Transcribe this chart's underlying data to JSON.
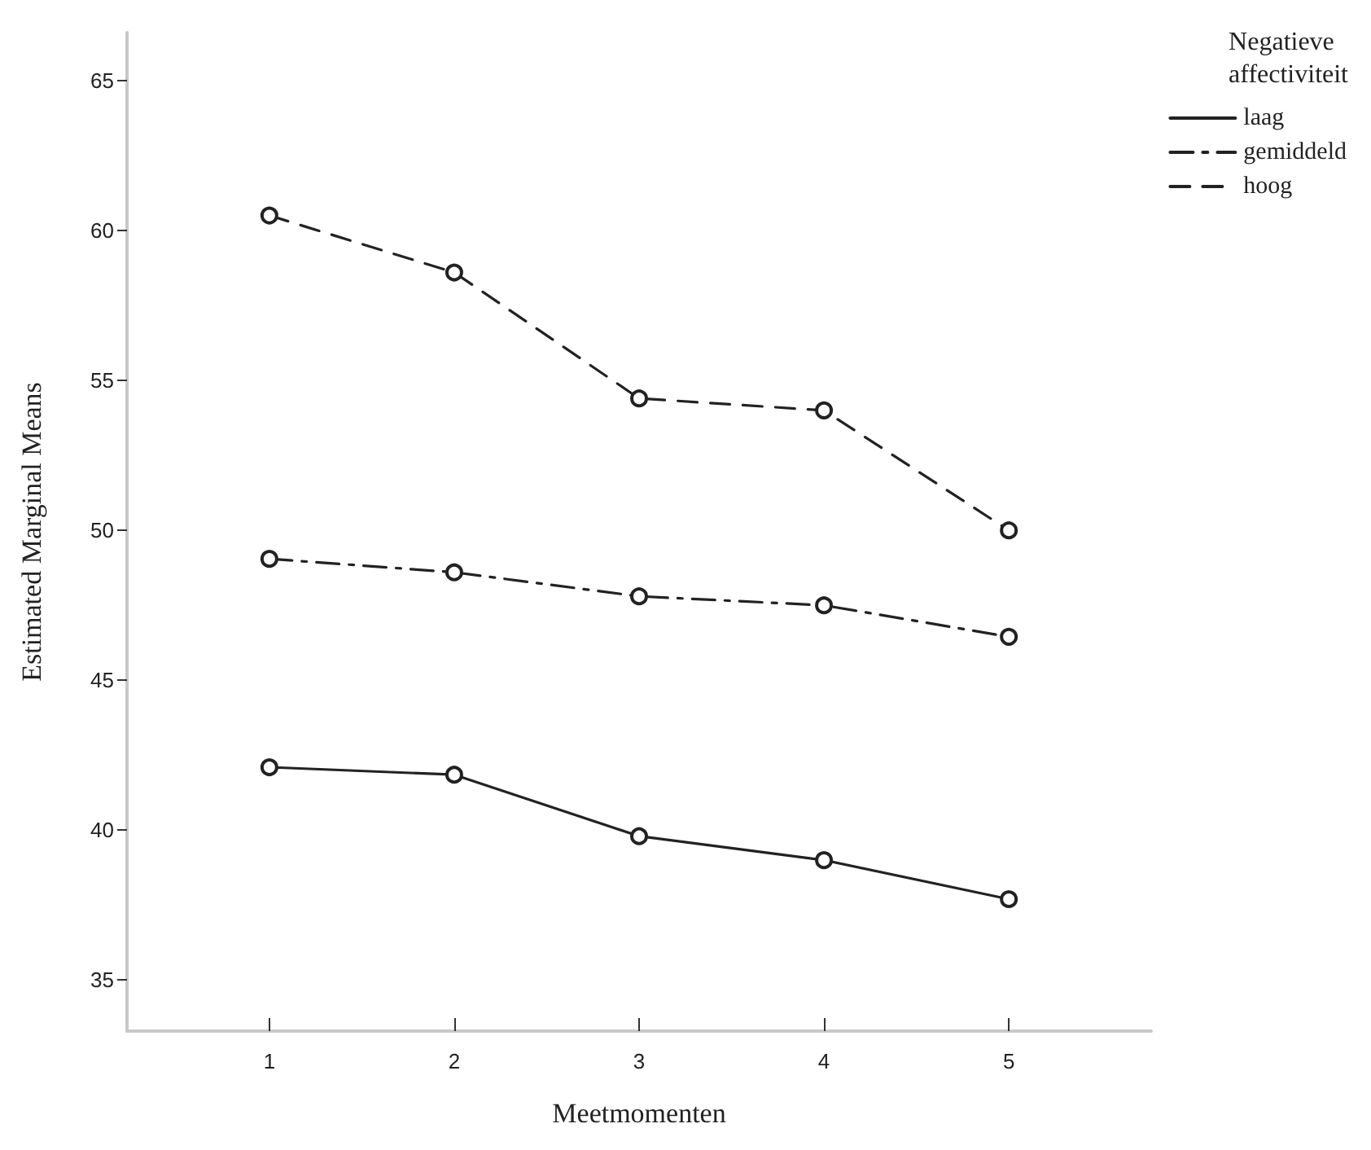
{
  "chart_data": {
    "type": "line",
    "xlabel": "Meetmomenten",
    "ylabel": "Estimated Marginal Means",
    "legend_title": "Negatieve affectiviteit",
    "x": [
      1,
      2,
      3,
      4,
      5
    ],
    "xlim": [
      0.23,
      5.77
    ],
    "xticks": [
      1,
      2,
      3,
      4,
      5
    ],
    "ylim": [
      33.3,
      66.6
    ],
    "yticks": [
      35,
      40,
      45,
      50,
      55,
      60,
      65
    ],
    "series": [
      {
        "name": "laag",
        "color": "#222222",
        "line_style": "solid",
        "values": [
          42.1,
          41.85,
          39.8,
          39.0,
          37.7
        ]
      },
      {
        "name": "gemiddeld",
        "color": "#222222",
        "line_style": "dashdot",
        "values": [
          49.05,
          48.6,
          47.8,
          47.5,
          46.45
        ]
      },
      {
        "name": "hoog",
        "color": "#222222",
        "line_style": "dashed",
        "values": [
          60.5,
          58.6,
          54.4,
          54.0,
          50.0
        ]
      }
    ],
    "marker": "circle",
    "grid": false,
    "legend": "top right"
  }
}
